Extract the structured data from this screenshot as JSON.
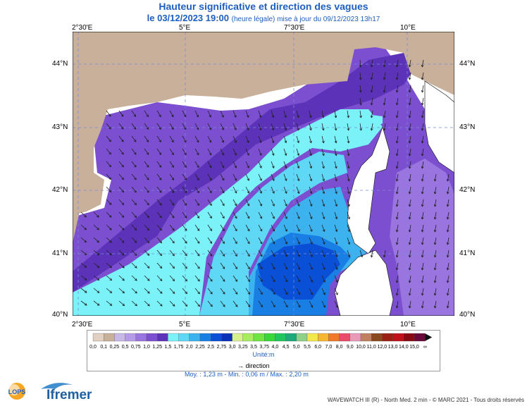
{
  "header": {
    "title": "Hauteur significative et direction des vagues",
    "date": "le 03/12/2023 19:00",
    "subtitle": "(heure légale) mise à jour du 09/12/2023 13h17"
  },
  "axes": {
    "top_lon": [
      "2°30'E",
      "5°E",
      "7°30'E",
      "10°E"
    ],
    "bottom_lon": [
      "2°30'E",
      "5°E",
      "7°30'E",
      "10°E"
    ],
    "lat": [
      "44°N",
      "43°N",
      "42°N",
      "41°N",
      "40°N"
    ]
  },
  "colorbar": {
    "labels": [
      "0,0",
      "0,1",
      "0,25",
      "0,5",
      "0,75",
      "1,0",
      "1,25",
      "1,5",
      "1,75",
      "2,0",
      "2,25",
      "2,5",
      "2,75",
      "3,0",
      "3,25",
      "3,5",
      "3,75",
      "4,0",
      "4,5",
      "5,0",
      "5,5",
      "6,0",
      "7,0",
      "8,0",
      "9,0",
      "10,0",
      "11,0",
      "12,0",
      "13,0",
      "14,0",
      "15,0",
      "∞"
    ],
    "colors": [
      "#e2cfc0",
      "#c9b09a",
      "#c7b8e8",
      "#b59ae8",
      "#9a74df",
      "#7b4fd0",
      "#5c33b8",
      "#7af2f8",
      "#5ed8f4",
      "#3cb2ef",
      "#1a7fe4",
      "#0a50d6",
      "#0a2fb8",
      "#d7f28a",
      "#a8ec62",
      "#6fe442",
      "#39d83a",
      "#22c55e",
      "#1fa87a",
      "#8fd18a",
      "#f2e84a",
      "#f5b731",
      "#ee7a2a",
      "#e84c6a",
      "#e89ab8",
      "#c08060",
      "#8a4a1e",
      "#9b1f12",
      "#c0101a",
      "#8a0a14",
      "#6a0a3a"
    ],
    "unit": "Unité:m"
  },
  "legend": {
    "direction": "direction"
  },
  "stats": "Moy. : 1,23 m  -  Min. : 0,06 m / Max. : 2,20 m",
  "footer": "WAVEWATCH III (R) - North Med. 2 min - © MARC 2021 - Tous droits réservés",
  "logos": {
    "lops": "LOPS",
    "ifremer": "Ifremer"
  }
}
